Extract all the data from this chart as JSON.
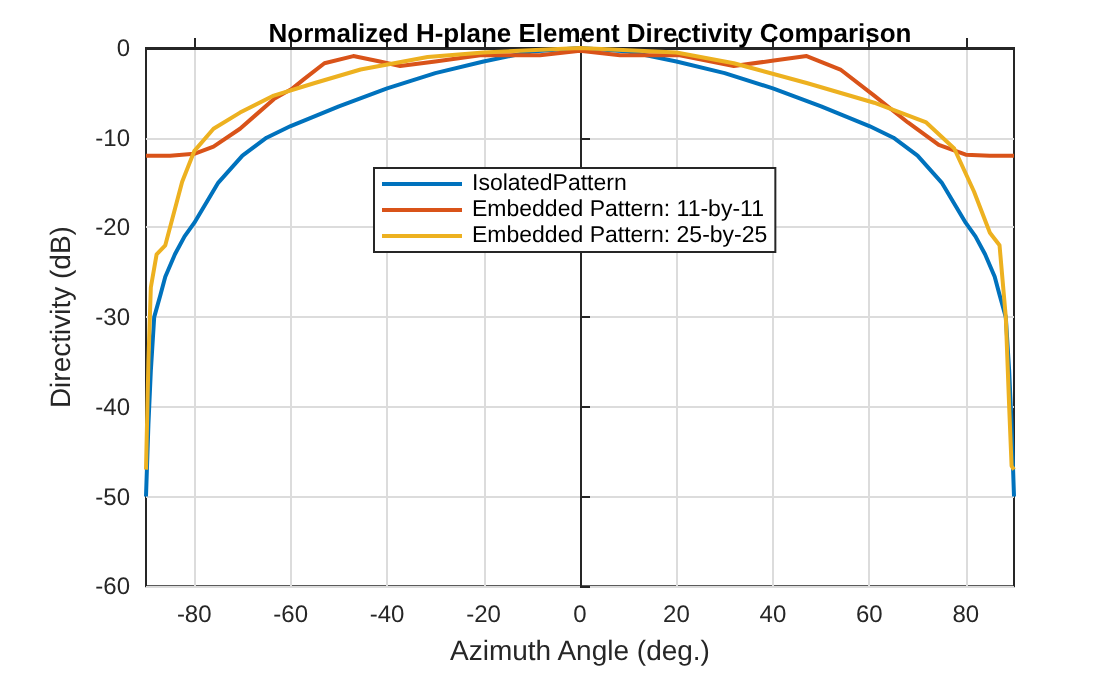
{
  "chart_data": {
    "type": "line",
    "title": "Normalized H-plane Element Directivity Comparison",
    "xlabel": "Azimuth Angle (deg.)",
    "ylabel": "Directivity (dB)",
    "xlim": [
      -90,
      90
    ],
    "xticks": [
      -80,
      -60,
      -40,
      -20,
      0,
      20,
      40,
      60,
      80
    ],
    "ylim": [
      -60,
      0
    ],
    "yticks": [
      -60,
      -50,
      -40,
      -30,
      -20,
      -10,
      0
    ],
    "grid": true,
    "legend": "top",
    "marker": "none",
    "line_style": "solid",
    "series": [
      {
        "name": "IsolatedPattern",
        "color": "#0072bd",
        "x": [
          -90,
          -89.5,
          -89,
          -88.3,
          -87,
          -86,
          -84,
          -82,
          -80,
          -75,
          -70,
          -65,
          -60,
          -50,
          -40,
          -30,
          -20,
          -10,
          0,
          10,
          20,
          30,
          40,
          50,
          60,
          65,
          70,
          75,
          80,
          82,
          84,
          86,
          87,
          88.3,
          89,
          89.5,
          90
        ],
        "values": [
          -50,
          -42,
          -36,
          -30,
          -27.5,
          -25.5,
          -23,
          -21,
          -19.5,
          -15,
          -12,
          -10,
          -8.7,
          -6.5,
          -4.5,
          -2.8,
          -1.5,
          -0.4,
          0,
          -0.4,
          -1.5,
          -2.8,
          -4.5,
          -6.5,
          -8.7,
          -10,
          -12,
          -15,
          -19.5,
          -21,
          -23,
          -25.5,
          -27.5,
          -30,
          -36,
          -42,
          -50
        ]
      },
      {
        "name": "Embedded Pattern: 11-by-11",
        "color": "#d95319",
        "x": [
          -90,
          -85,
          -80,
          -76,
          -70.5,
          -63.5,
          -59.6,
          -57.3,
          -53,
          -47,
          -41.5,
          -37.3,
          -30,
          -20.7,
          -8.3,
          0,
          8.3,
          20.7,
          31.9,
          40.2,
          47,
          54,
          61,
          68,
          74.4,
          80,
          85,
          90
        ],
        "values": [
          -12,
          -12,
          -11.8,
          -11,
          -9,
          -5.7,
          -4.5,
          -3.5,
          -1.7,
          -0.9,
          -1.5,
          -2,
          -1.5,
          -0.8,
          -0.8,
          -0.3,
          -0.8,
          -0.8,
          -2,
          -1.4,
          -0.9,
          -2.4,
          -5.3,
          -8.3,
          -10.8,
          -11.9,
          -12,
          -12
        ]
      },
      {
        "name": "Embedded Pattern: 25-by-25",
        "color": "#edb120",
        "x": [
          -90,
          -89.5,
          -89,
          -87.8,
          -86,
          -82.5,
          -80,
          -76,
          -70.5,
          -63.5,
          -55,
          -45.5,
          -31.6,
          -20,
          0,
          20,
          31.9,
          47,
          61,
          71.8,
          77.6,
          81.7,
          85,
          87,
          88.3,
          89,
          89.5,
          90
        ],
        "values": [
          -47,
          -35,
          -26.7,
          -23,
          -22,
          -14.9,
          -11.5,
          -9,
          -7.2,
          -5.3,
          -3.9,
          -2.4,
          -1,
          -0.5,
          0,
          -0.5,
          -1.7,
          -3.9,
          -6.1,
          -8.3,
          -11.2,
          -16,
          -20.6,
          -22,
          -30,
          -40,
          -46.6,
          -47
        ]
      }
    ]
  }
}
